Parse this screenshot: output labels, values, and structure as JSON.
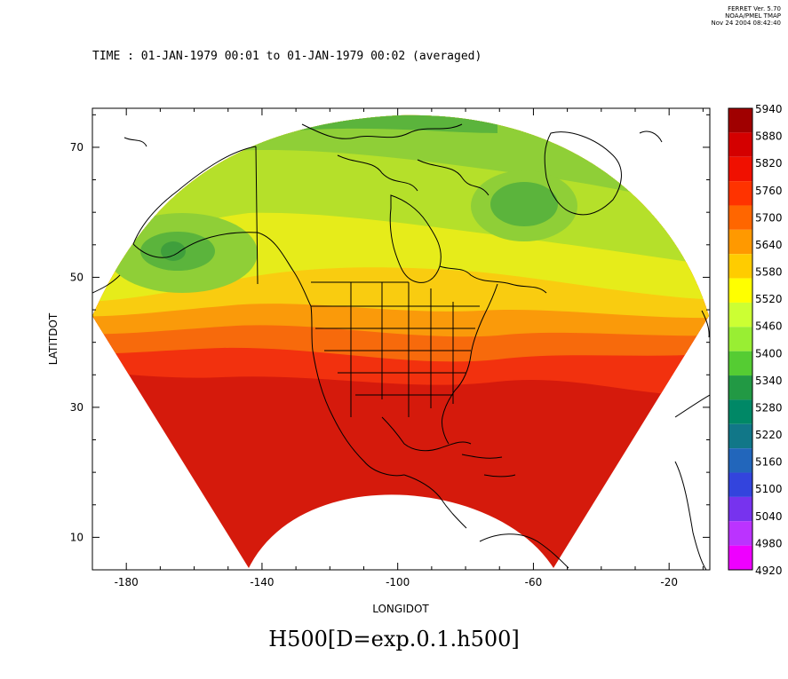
{
  "credits": {
    "line1": "FERRET Ver. 5.70",
    "line2": "NOAA/PMEL TMAP",
    "line3": "Nov 24 2004 08:42:40"
  },
  "time_label": "TIME : 01-JAN-1979 00:01 to 01-JAN-1979 00:02 (averaged)",
  "title": "H500[D=exp.0.1.h500]",
  "chart_data": {
    "type": "heatmap",
    "projection": "polar-stereographic (curved domain)",
    "xlabel": "LONGIDOT",
    "ylabel": "LATITDOT",
    "x_ticks": [
      -180,
      -140,
      -100,
      -60,
      -20
    ],
    "y_ticks": [
      10,
      30,
      50,
      70
    ],
    "xlim": [
      -190,
      -8
    ],
    "ylim": [
      5,
      76
    ],
    "grid": false,
    "legend": "right colorbar",
    "colorbar": {
      "levels": [
        "5940",
        "5880",
        "5820",
        "5760",
        "5700",
        "5640",
        "5580",
        "5520",
        "5460",
        "5400",
        "5340",
        "5280",
        "5220",
        "5160",
        "5100",
        "5040",
        "4980",
        "4920"
      ],
      "colors": [
        "#a00000",
        "#d40000",
        "#f01000",
        "#ff3300",
        "#ff6600",
        "#ff9900",
        "#ffcc00",
        "#ffff00",
        "#ccff33",
        "#99ee33",
        "#55cc33",
        "#229944",
        "#008866",
        "#117788",
        "#2266bb",
        "#3344dd",
        "#7733ee",
        "#bb33ff",
        "#ee00ff"
      ]
    },
    "bands": [
      {
        "label": "5820",
        "color": "#d51a0c"
      },
      {
        "label": "5760",
        "color": "#f2310e"
      },
      {
        "label": "5700",
        "color": "#f76a0c"
      },
      {
        "label": "5640",
        "color": "#fa9a0a"
      },
      {
        "label": "5580",
        "color": "#f9cc10"
      },
      {
        "label": "5520",
        "color": "#e6ec1a"
      },
      {
        "label": "5460",
        "color": "#b5e02a"
      },
      {
        "label": "5400",
        "color": "#8fcf37"
      },
      {
        "label": "5340",
        "color": "#5bb43c"
      }
    ]
  }
}
